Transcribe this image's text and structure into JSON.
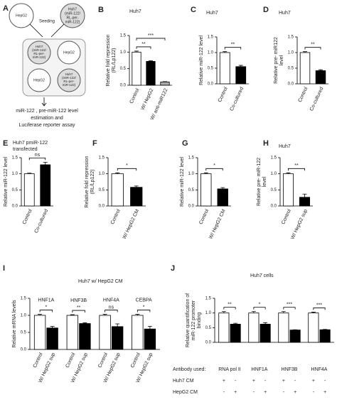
{
  "diagram": {
    "label": "A",
    "seeding": "Seeding",
    "hepg2": "HepG2",
    "huh7": [
      "Huh7",
      "(miR-122/",
      "RL-per-",
      "miR-122)"
    ],
    "result": [
      "miR-122 , pre-miR-122  level",
      "estimation and",
      "Luciferase reporter assay"
    ]
  },
  "chart_data": [
    {
      "type": "bar",
      "label": "B",
      "title": [
        "Huh7"
      ],
      "ylabel": [
        "Relative fold repression",
        "(RL/Lp122)"
      ],
      "categories": [
        "Control",
        "W/ HepG2",
        "W/ anti-miR122"
      ],
      "values": [
        1.0,
        0.72,
        0.1
      ],
      "errors": [
        0.03,
        0.02,
        0.01
      ],
      "colors": [
        "#ffffff",
        "#000000",
        "#aaaaaa"
      ],
      "significance": [
        "**",
        "***"
      ],
      "ylim": [
        0,
        1.5
      ],
      "yticks": [
        {
          "value": 0,
          "label": "0.0"
        },
        0.5,
        {
          "value": 1,
          "label": "1.0"
        },
        1.5
      ]
    },
    {
      "type": "bar",
      "label": "C",
      "title": [
        "Huh7"
      ],
      "ylabel": [
        "Relative miR-122 level"
      ],
      "categories": [
        "Control",
        "Co-cultured"
      ],
      "values": [
        1.0,
        0.55
      ],
      "errors": [
        0.03,
        0.04
      ],
      "colors": [
        "#ffffff",
        "#000000"
      ],
      "significance": [
        "**"
      ],
      "ylim": [
        0,
        1.5
      ],
      "yticks": [
        {
          "value": 0,
          "label": "0.0"
        },
        0.5,
        {
          "value": 1,
          "label": "1.0"
        },
        1.5
      ]
    },
    {
      "type": "bar",
      "label": "D",
      "title": [
        "Huh7"
      ],
      "ylabel": [
        "Relative pre- miR122",
        "level"
      ],
      "categories": [
        "Control",
        "Co-cultured"
      ],
      "values": [
        1.0,
        0.42
      ],
      "errors": [
        0.03,
        0.03
      ],
      "colors": [
        "#ffffff",
        "#000000"
      ],
      "significance": [
        "**"
      ],
      "ylim": [
        0,
        1.5
      ],
      "yticks": [
        {
          "value": 0,
          "label": "0.0"
        },
        0.5,
        {
          "value": 1,
          "label": "1.0"
        },
        1.5
      ]
    },
    {
      "type": "bar",
      "label": "E",
      "title": [
        "Huh7 pmiR-122",
        "transfected"
      ],
      "ylabel": [
        "Relative miR-122 level"
      ],
      "categories": [
        "Control",
        "Co-cultured"
      ],
      "values": [
        1.0,
        1.28
      ],
      "errors": [
        0.02,
        0.08
      ],
      "colors": [
        "#ffffff",
        "#000000"
      ],
      "significance": [
        "ns"
      ],
      "ylim": [
        0,
        1.5
      ],
      "yticks": [
        {
          "value": 0,
          "label": "0.0"
        },
        0.5,
        {
          "value": 1,
          "label": "1.0"
        },
        1.5
      ]
    },
    {
      "type": "bar",
      "label": "F",
      "title": [],
      "ylabel": [
        "Relative fold repression",
        "(RL/Lp122)"
      ],
      "categories": [
        "Control",
        "W/ HepG2 CM"
      ],
      "values": [
        1.0,
        0.58
      ],
      "errors": [
        0.03,
        0.04
      ],
      "colors": [
        "#ffffff",
        "#000000"
      ],
      "significance": [
        "*"
      ],
      "ylim": [
        0,
        1.5
      ],
      "yticks": [
        {
          "value": 0,
          "label": "0.0"
        },
        0.5,
        {
          "value": 1,
          "label": "1.0"
        },
        1.5
      ]
    },
    {
      "type": "bar",
      "label": "G",
      "title": [],
      "ylabel": [
        "Relative miR-122 level"
      ],
      "categories": [
        "Control",
        "W/ HepG2 CM"
      ],
      "values": [
        1.0,
        0.53
      ],
      "errors": [
        0.03,
        0.04
      ],
      "colors": [
        "#ffffff",
        "#000000"
      ],
      "significance": [
        "*"
      ],
      "ylim": [
        0,
        1.5
      ],
      "yticks": [
        {
          "value": 0,
          "label": "0.0"
        },
        0.5,
        {
          "value": 1,
          "label": "1.0"
        },
        1.5
      ]
    },
    {
      "type": "bar",
      "label": "H",
      "title": [
        "Huh7"
      ],
      "ylabel": [
        "Relative pre- miR-122",
        "level"
      ],
      "categories": [
        "Control",
        "W/ HepG2 sup"
      ],
      "values": [
        1.0,
        0.27
      ],
      "errors": [
        0.03,
        0.1
      ],
      "colors": [
        "#ffffff",
        "#000000"
      ],
      "significance": [
        "**"
      ],
      "ylim": [
        0,
        1.5
      ],
      "yticks": [
        {
          "value": 0,
          "label": "0.0"
        },
        0.5,
        {
          "value": 1,
          "label": "1.0"
        },
        1.5
      ]
    },
    {
      "type": "grouped",
      "label": "I",
      "title": [
        "Huh7 w/ HepG2 CM"
      ],
      "ylabel": [
        "Relative mRNA  levels"
      ],
      "categories": [
        "HNF1A",
        "HNF3B",
        "HNF4A",
        "CEBPA"
      ],
      "series": [
        {
          "name": "Control",
          "color": "#ffffff",
          "values": [
            1.0,
            1.0,
            1.0,
            1.0
          ],
          "errors": [
            0.03,
            0.02,
            0.03,
            0.03
          ]
        },
        {
          "name": "W/ HepG2 sup",
          "color": "#000000",
          "values": [
            0.63,
            0.76,
            0.67,
            0.6
          ],
          "errors": [
            0.05,
            0.02,
            0.08,
            0.08
          ]
        }
      ],
      "significance": [
        "*",
        "**",
        "ns",
        "*"
      ],
      "ylim": [
        0,
        1.5
      ],
      "yticks": [
        {
          "value": 0,
          "label": "0.0"
        },
        0.5,
        {
          "value": 1,
          "label": "1.0"
        },
        1.5
      ]
    },
    {
      "type": "grouped",
      "label": "J",
      "title": [
        "Huh7 cells"
      ],
      "ylabel": [
        "Relative quantification of",
        "miR-122 promoter",
        "binding"
      ],
      "categories": [
        "RNA pol II",
        "HNF1A",
        "HNF3B",
        "HNF4A"
      ],
      "series": [
        {
          "name": "Huh7 CM",
          "color": "#ffffff",
          "values": [
            1.0,
            1.0,
            1.0,
            1.0
          ],
          "errors": [
            0.05,
            0.05,
            0.05,
            0.03
          ]
        },
        {
          "name": "HepG2 CM",
          "color": "#000000",
          "values": [
            0.62,
            0.62,
            0.42,
            0.43
          ],
          "errors": [
            0.03,
            0.05,
            0.01,
            0.01
          ]
        }
      ],
      "significance": [
        "**",
        "*",
        "***",
        "***"
      ],
      "table": {
        "header": "Antibody used:",
        "rows": [
          [
            "+",
            "-",
            "+",
            "-",
            "+",
            "-",
            "+",
            "-"
          ],
          [
            "-",
            "+",
            "-",
            "+",
            "-",
            "+",
            "-",
            "+"
          ]
        ]
      },
      "ylim": [
        0,
        1.5
      ],
      "yticks": [
        {
          "value": 0,
          "label": "0.0"
        },
        0.5,
        {
          "value": 1,
          "label": "1.0"
        },
        1.5
      ]
    }
  ]
}
